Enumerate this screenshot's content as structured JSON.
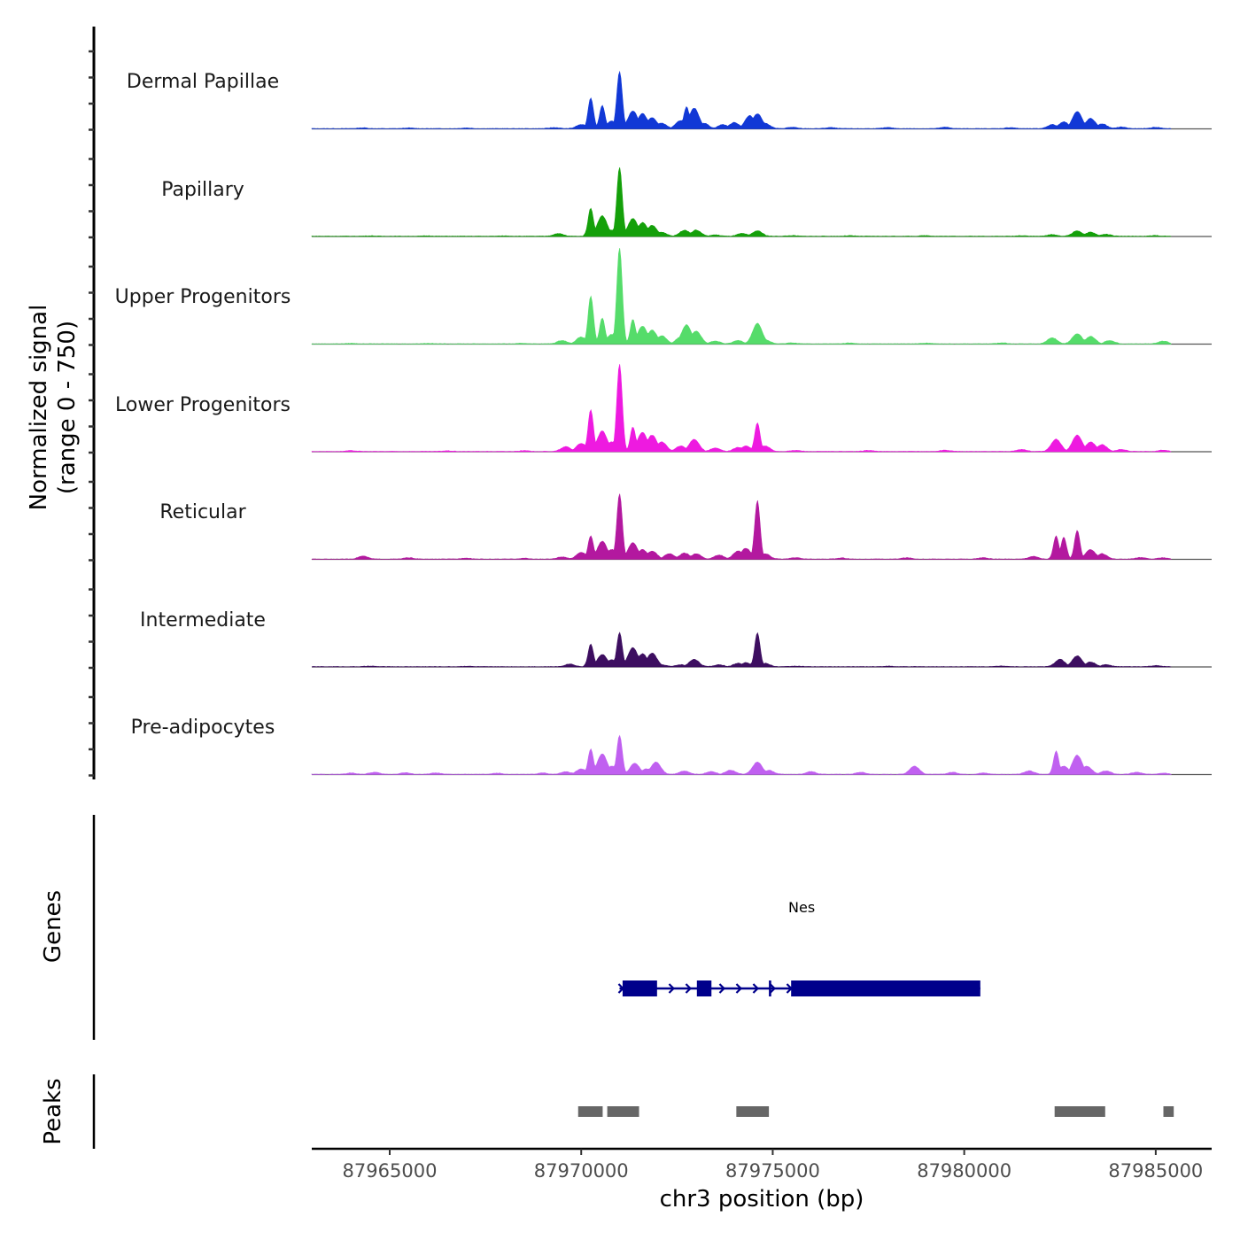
{
  "chart_data": {
    "type": "area",
    "title": "",
    "xlabel": "chr3 position (bp)",
    "ylabel": "Normalized signal\n(range 0 - 750)",
    "ylabel_lines": [
      "Normalized signal",
      "(range 0 - 750)"
    ],
    "y_range": [
      0,
      750
    ],
    "xlim": [
      87962965,
      87986460
    ],
    "x_ticks": [
      87965000,
      87970000,
      87975000,
      87980000,
      87985000
    ],
    "x_tick_labels": [
      "87965000",
      "87970000",
      "87975000",
      "87980000",
      "87985000"
    ],
    "signal_extent": [
      87962965,
      87985400
    ],
    "tracks": [
      {
        "name": "Dermal Papillae",
        "color": "#1138D6",
        "peaks": [
          [
            87964300,
            6
          ],
          [
            87965500,
            5
          ],
          [
            87967000,
            5
          ],
          [
            87969300,
            8
          ],
          [
            87970000,
            30
          ],
          [
            87970250,
            225
          ],
          [
            87970550,
            170
          ],
          [
            87970800,
            55
          ],
          [
            87971000,
            420
          ],
          [
            87971350,
            130
          ],
          [
            87971600,
            110
          ],
          [
            87971850,
            80
          ],
          [
            87972100,
            40
          ],
          [
            87972600,
            60
          ],
          [
            87972750,
            160
          ],
          [
            87972950,
            150
          ],
          [
            87973200,
            40
          ],
          [
            87973700,
            30
          ],
          [
            87974000,
            45
          ],
          [
            87974400,
            95
          ],
          [
            87974600,
            110
          ],
          [
            87974800,
            40
          ],
          [
            87975500,
            10
          ],
          [
            87976500,
            8
          ],
          [
            87978000,
            8
          ],
          [
            87979500,
            10
          ],
          [
            87981200,
            8
          ],
          [
            87982300,
            30
          ],
          [
            87982600,
            50
          ],
          [
            87982950,
            125
          ],
          [
            87983300,
            75
          ],
          [
            87983600,
            35
          ],
          [
            87984100,
            12
          ],
          [
            87985000,
            10
          ]
        ]
      },
      {
        "name": "Papillary",
        "color": "#14A00A",
        "peaks": [
          [
            87964500,
            3
          ],
          [
            87966000,
            3
          ],
          [
            87968000,
            3
          ],
          [
            87969400,
            20
          ],
          [
            87970250,
            205
          ],
          [
            87970550,
            150
          ],
          [
            87970800,
            45
          ],
          [
            87971000,
            505
          ],
          [
            87971350,
            130
          ],
          [
            87971600,
            100
          ],
          [
            87971850,
            80
          ],
          [
            87972100,
            30
          ],
          [
            87972700,
            45
          ],
          [
            87973000,
            45
          ],
          [
            87973500,
            10
          ],
          [
            87974200,
            20
          ],
          [
            87974600,
            40
          ],
          [
            87975500,
            5
          ],
          [
            87977000,
            4
          ],
          [
            87979000,
            5
          ],
          [
            87981500,
            5
          ],
          [
            87982300,
            12
          ],
          [
            87982950,
            40
          ],
          [
            87983300,
            30
          ],
          [
            87983700,
            15
          ],
          [
            87985000,
            5
          ]
        ]
      },
      {
        "name": "Upper Progenitors",
        "color": "#55DC6A",
        "peaks": [
          [
            87964000,
            4
          ],
          [
            87966000,
            4
          ],
          [
            87968500,
            4
          ],
          [
            87969500,
            25
          ],
          [
            87970000,
            50
          ],
          [
            87970250,
            350
          ],
          [
            87970550,
            190
          ],
          [
            87970800,
            70
          ],
          [
            87971000,
            705
          ],
          [
            87971350,
            180
          ],
          [
            87971600,
            130
          ],
          [
            87971850,
            100
          ],
          [
            87972100,
            60
          ],
          [
            87972600,
            50
          ],
          [
            87972750,
            140
          ],
          [
            87973000,
            95
          ],
          [
            87973500,
            20
          ],
          [
            87974100,
            25
          ],
          [
            87974600,
            150
          ],
          [
            87974800,
            30
          ],
          [
            87975500,
            8
          ],
          [
            87977000,
            6
          ],
          [
            87979000,
            6
          ],
          [
            87981000,
            8
          ],
          [
            87982300,
            45
          ],
          [
            87982950,
            75
          ],
          [
            87983300,
            55
          ],
          [
            87983800,
            25
          ],
          [
            87985200,
            20
          ]
        ]
      },
      {
        "name": "Lower Progenitors",
        "color": "#EE1AE0",
        "peaks": [
          [
            87964000,
            6
          ],
          [
            87966500,
            5
          ],
          [
            87968500,
            6
          ],
          [
            87969600,
            35
          ],
          [
            87970000,
            60
          ],
          [
            87970250,
            305
          ],
          [
            87970550,
            150
          ],
          [
            87970800,
            70
          ],
          [
            87971000,
            640
          ],
          [
            87971350,
            180
          ],
          [
            87971600,
            140
          ],
          [
            87971850,
            120
          ],
          [
            87972100,
            70
          ],
          [
            87972600,
            40
          ],
          [
            87972950,
            90
          ],
          [
            87973500,
            25
          ],
          [
            87974100,
            30
          ],
          [
            87974300,
            40
          ],
          [
            87974600,
            210
          ],
          [
            87974800,
            40
          ],
          [
            87975600,
            8
          ],
          [
            87977500,
            8
          ],
          [
            87979500,
            10
          ],
          [
            87981500,
            15
          ],
          [
            87982400,
            90
          ],
          [
            87982950,
            120
          ],
          [
            87983300,
            70
          ],
          [
            87983600,
            50
          ],
          [
            87984100,
            15
          ],
          [
            87985200,
            10
          ]
        ]
      },
      {
        "name": "Reticular",
        "color": "#B3189F",
        "peaks": [
          [
            87964300,
            22
          ],
          [
            87965500,
            10
          ],
          [
            87967000,
            8
          ],
          [
            87968500,
            6
          ],
          [
            87969500,
            15
          ],
          [
            87970000,
            50
          ],
          [
            87970250,
            170
          ],
          [
            87970550,
            130
          ],
          [
            87970800,
            70
          ],
          [
            87971000,
            480
          ],
          [
            87971350,
            120
          ],
          [
            87971600,
            70
          ],
          [
            87971850,
            60
          ],
          [
            87972300,
            40
          ],
          [
            87972700,
            45
          ],
          [
            87973000,
            40
          ],
          [
            87973600,
            30
          ],
          [
            87974100,
            60
          ],
          [
            87974300,
            80
          ],
          [
            87974600,
            430
          ],
          [
            87974800,
            40
          ],
          [
            87975600,
            10
          ],
          [
            87976800,
            8
          ],
          [
            87978500,
            10
          ],
          [
            87980500,
            10
          ],
          [
            87981800,
            20
          ],
          [
            87982400,
            170
          ],
          [
            87982600,
            160
          ],
          [
            87982950,
            210
          ],
          [
            87983300,
            70
          ],
          [
            87983600,
            40
          ],
          [
            87984600,
            12
          ],
          [
            87985200,
            10
          ]
        ]
      },
      {
        "name": "Intermediate",
        "color": "#3D0E60",
        "peaks": [
          [
            87964500,
            4
          ],
          [
            87967000,
            4
          ],
          [
            87969700,
            20
          ],
          [
            87970250,
            165
          ],
          [
            87970550,
            90
          ],
          [
            87970800,
            50
          ],
          [
            87971000,
            250
          ],
          [
            87971350,
            140
          ],
          [
            87971600,
            95
          ],
          [
            87971850,
            100
          ],
          [
            87972100,
            15
          ],
          [
            87972600,
            15
          ],
          [
            87972950,
            55
          ],
          [
            87973600,
            15
          ],
          [
            87974100,
            25
          ],
          [
            87974300,
            30
          ],
          [
            87974600,
            250
          ],
          [
            87974800,
            25
          ],
          [
            87975600,
            5
          ],
          [
            87978000,
            4
          ],
          [
            87981000,
            6
          ],
          [
            87982500,
            55
          ],
          [
            87982950,
            80
          ],
          [
            87983300,
            35
          ],
          [
            87983700,
            15
          ],
          [
            87985000,
            8
          ]
        ]
      },
      {
        "name": "Pre-adipocytes",
        "color": "#C060F0",
        "peaks": [
          [
            87964000,
            10
          ],
          [
            87964600,
            15
          ],
          [
            87965400,
            12
          ],
          [
            87966200,
            10
          ],
          [
            87967800,
            8
          ],
          [
            87969000,
            10
          ],
          [
            87969600,
            20
          ],
          [
            87970000,
            40
          ],
          [
            87970250,
            185
          ],
          [
            87970550,
            150
          ],
          [
            87970800,
            60
          ],
          [
            87971000,
            285
          ],
          [
            87971400,
            80
          ],
          [
            87971700,
            40
          ],
          [
            87971950,
            90
          ],
          [
            87972700,
            25
          ],
          [
            87973400,
            20
          ],
          [
            87973900,
            30
          ],
          [
            87974600,
            90
          ],
          [
            87974900,
            30
          ],
          [
            87976000,
            20
          ],
          [
            87977300,
            15
          ],
          [
            87978700,
            60
          ],
          [
            87979700,
            15
          ],
          [
            87980500,
            10
          ],
          [
            87981700,
            25
          ],
          [
            87982400,
            170
          ],
          [
            87982600,
            60
          ],
          [
            87982950,
            140
          ],
          [
            87983200,
            60
          ],
          [
            87983700,
            25
          ],
          [
            87984500,
            15
          ],
          [
            87985200,
            10
          ]
        ]
      }
    ],
    "genes": {
      "track_label": "Genes",
      "color": "#00008B",
      "items": [
        {
          "name": "Nes",
          "strand": "+",
          "start": 87971000,
          "end": 87980420,
          "exons": [
            [
              87971080,
              87971980
            ],
            [
              87973020,
              87973400
            ],
            [
              87974900,
              87974960
            ],
            [
              87975480,
              87980420
            ]
          ]
        }
      ]
    },
    "peak_regions": {
      "track_label": "Peaks",
      "color": "#666666",
      "regions": [
        [
          87969920,
          87970560
        ],
        [
          87970680,
          87971510
        ],
        [
          87974050,
          87974900
        ],
        [
          87982360,
          87983680
        ],
        [
          87985200,
          87985470
        ]
      ]
    }
  }
}
